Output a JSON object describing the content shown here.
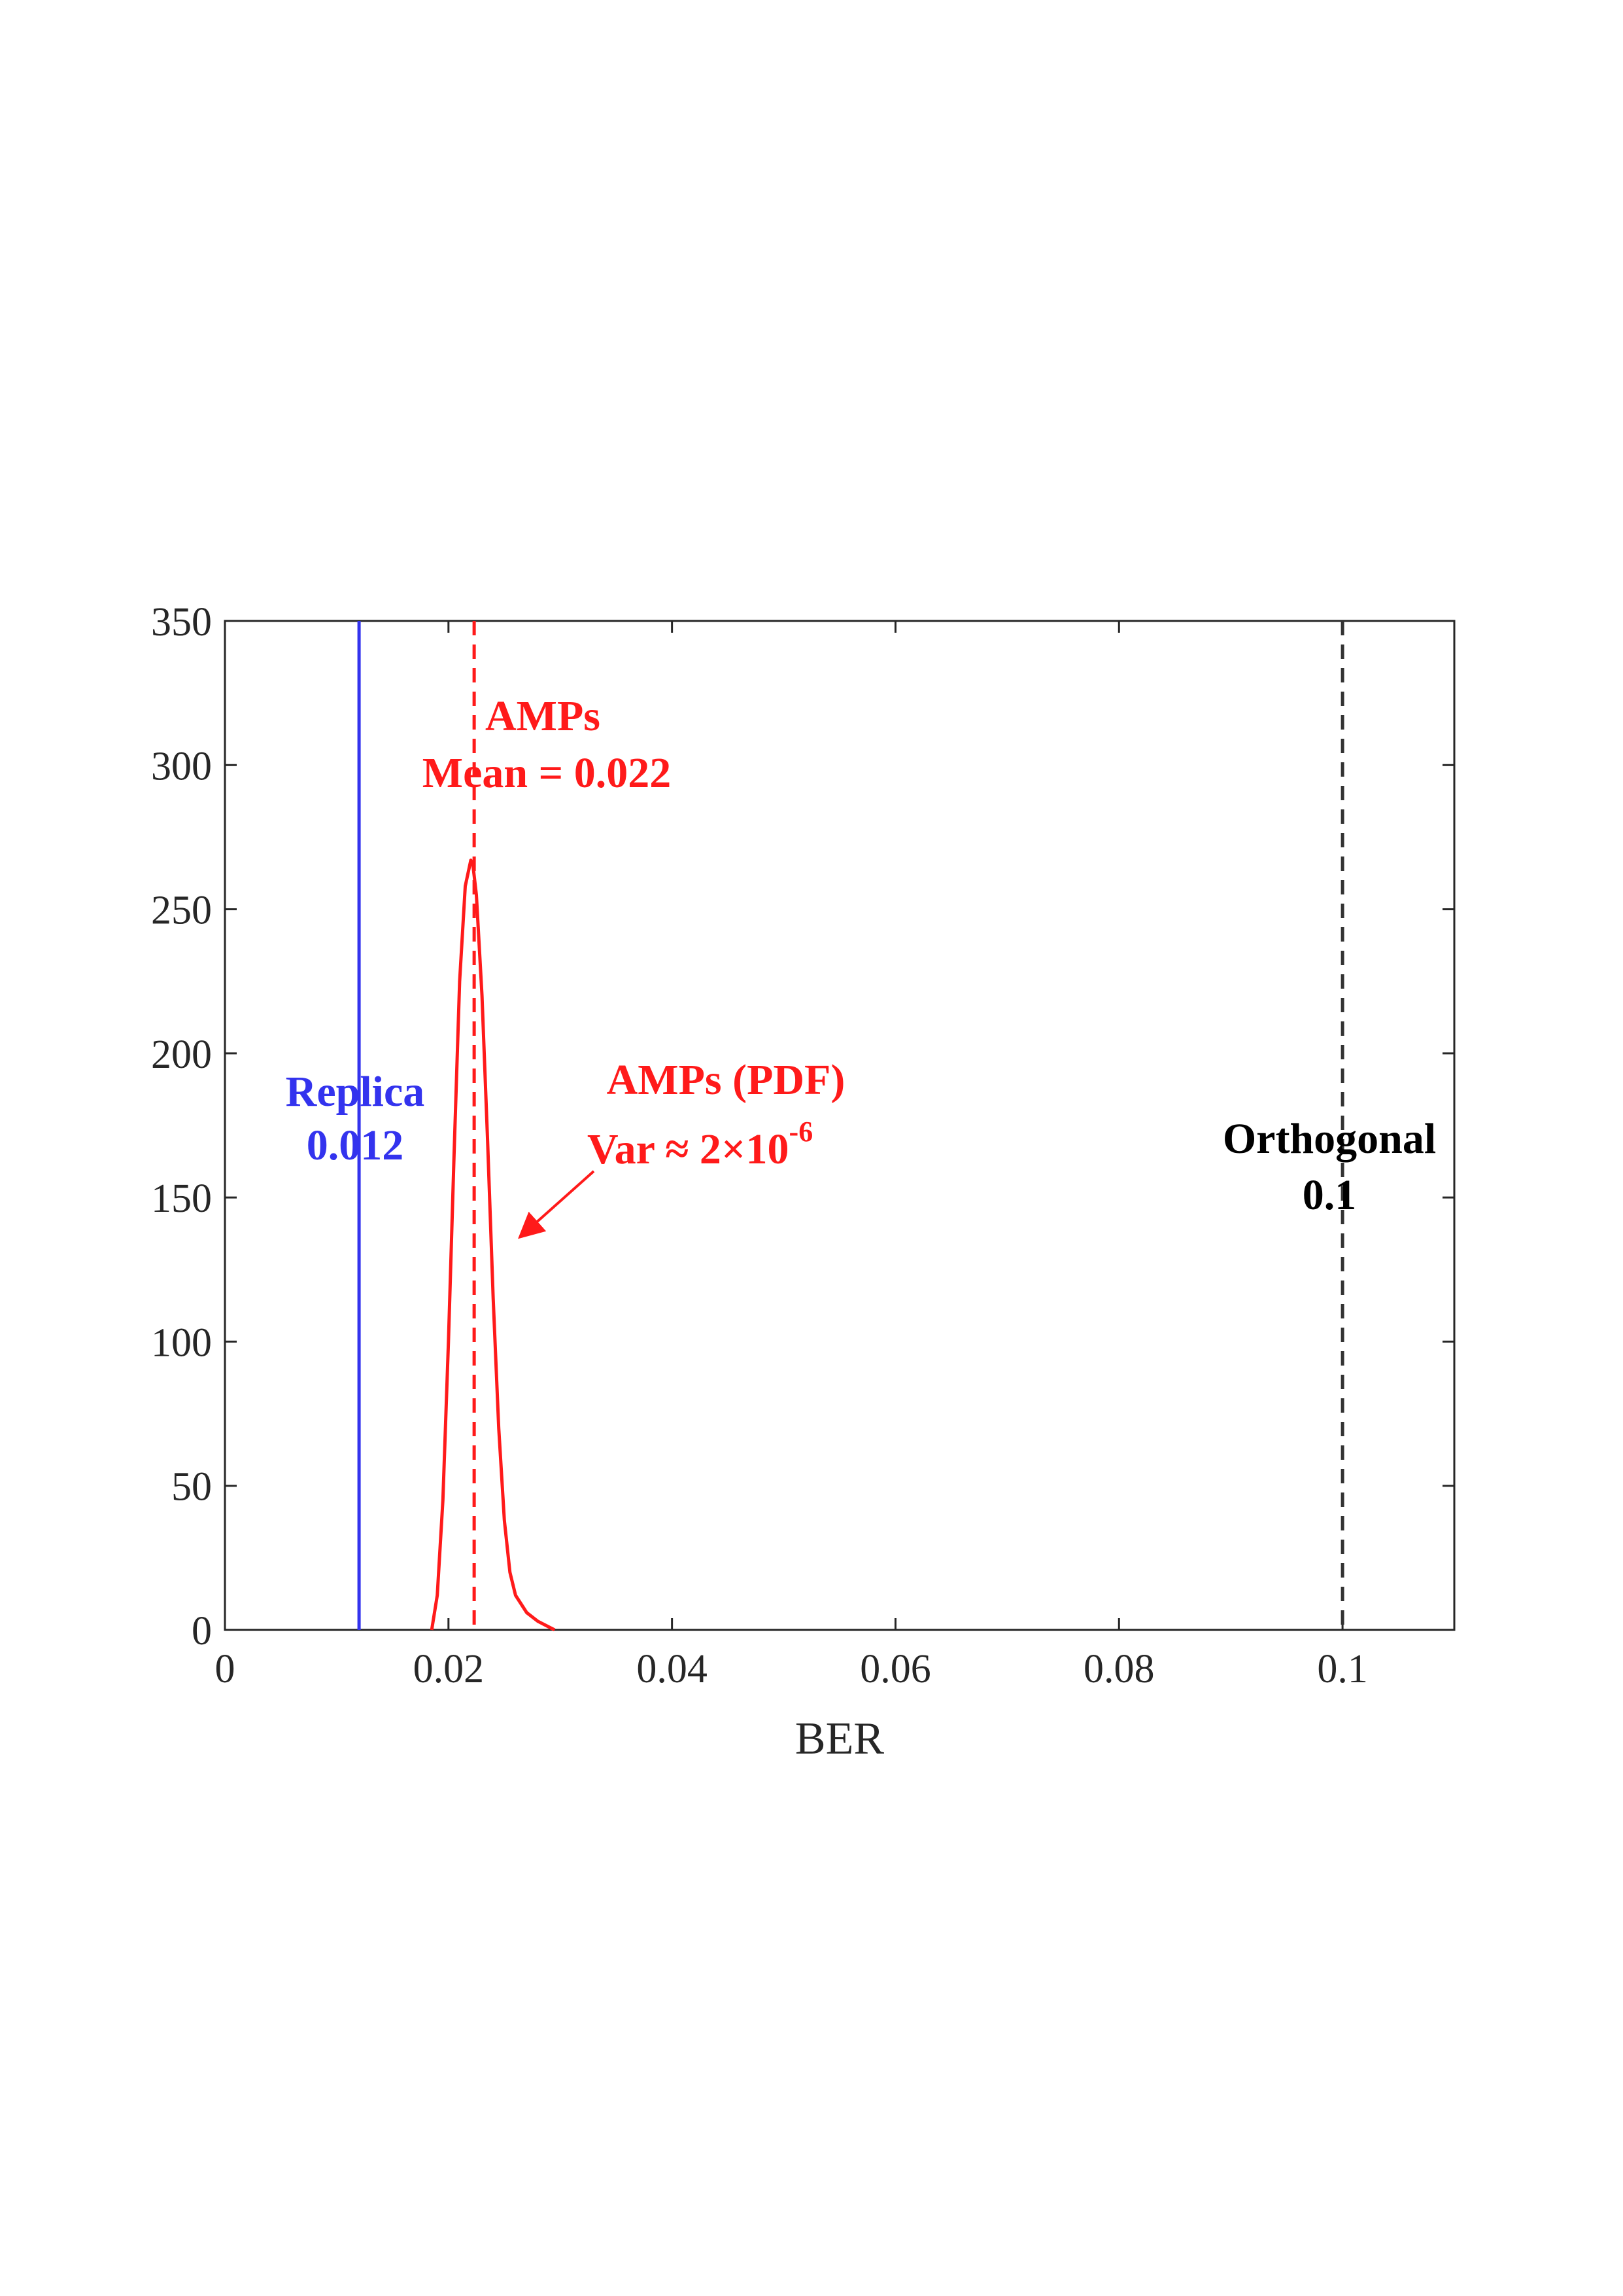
{
  "chart_data": {
    "type": "line",
    "title": "",
    "xlabel": "BER",
    "ylabel": "",
    "xlim": [
      0,
      0.11
    ],
    "ylim": [
      0,
      350
    ],
    "grid": false,
    "x_ticks": [
      0,
      0.02,
      0.04,
      0.06,
      0.08,
      0.1
    ],
    "x_tick_labels": [
      "0",
      "0.02",
      "0.04",
      "0.06",
      "0.08",
      "0.1"
    ],
    "y_ticks": [
      0,
      50,
      100,
      150,
      200,
      250,
      300,
      350
    ],
    "y_tick_labels": [
      "0",
      "50",
      "100",
      "150",
      "200",
      "250",
      "300",
      "350"
    ],
    "colors": {
      "replica": "#3333ee",
      "amps": "#ff1a1a",
      "orthogonal": "#333333",
      "axis": "#262626"
    },
    "series": [
      {
        "name": "AMPs (PDF)",
        "style": "solid",
        "color_key": "amps",
        "x": [
          0.0185,
          0.019,
          0.0195,
          0.02,
          0.0205,
          0.021,
          0.0215,
          0.022,
          0.0222,
          0.0225,
          0.023,
          0.0235,
          0.024,
          0.0245,
          0.025,
          0.0255,
          0.026,
          0.027,
          0.028,
          0.029,
          0.0295
        ],
        "y": [
          0,
          12,
          45,
          100,
          165,
          225,
          258,
          267,
          265,
          255,
          220,
          170,
          115,
          70,
          38,
          20,
          12,
          6,
          3,
          1,
          0
        ]
      }
    ],
    "vertical_lines": [
      {
        "name": "Replica",
        "x": 0.012,
        "style": "solid",
        "color_key": "replica"
      },
      {
        "name": "AMPs Mean",
        "x": 0.0223,
        "style": "dashed",
        "color_key": "amps"
      },
      {
        "name": "Orthogonal",
        "x": 0.1,
        "style": "dashed",
        "color_key": "orthogonal"
      }
    ],
    "annotations": {
      "replica": {
        "line1": "Replica",
        "line2": "0.012"
      },
      "amps_mean": {
        "line1": "AMPs",
        "line2": "Mean = 0.022"
      },
      "amps_pdf": {
        "line1": "AMPs (PDF)",
        "line2": "Var ≈ 2×10",
        "exponent": "-6"
      },
      "orthogonal": {
        "line1": "Orthogonal",
        "line2": "0.1"
      }
    }
  }
}
